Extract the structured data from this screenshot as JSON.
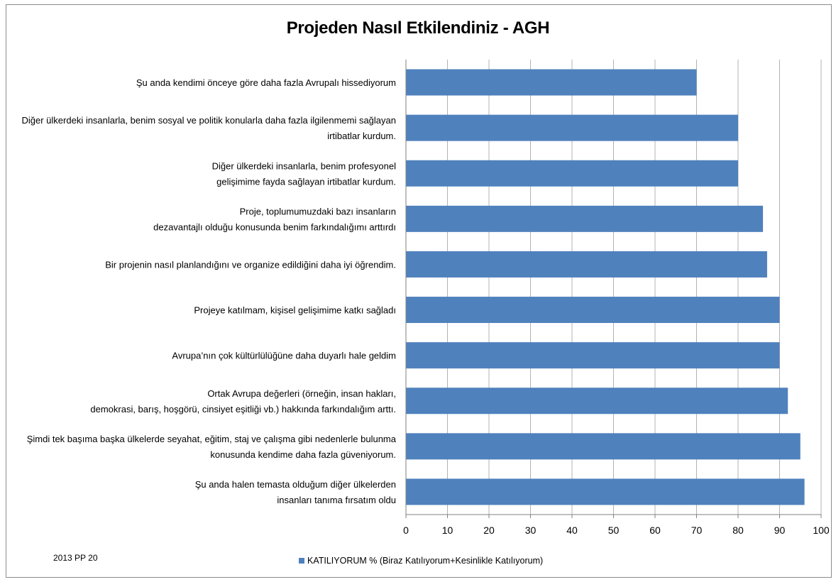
{
  "chart_data": {
    "type": "bar",
    "orientation": "horizontal",
    "title": "Projeden Nasıl Etkilendiniz - AGH",
    "categories": [
      [
        "Şu anda kendimi önceye göre daha fazla Avrupalı hissediyorum"
      ],
      [
        "Diğer ülkerdeki insanlarla, benim sosyal ve politik konularla daha fazla ilgilenmemi sağlayan",
        "irtibatlar kurdum."
      ],
      [
        "Diğer ülkerdeki insanlarla, benim profesyonel",
        "gelişimime fayda sağlayan irtibatlar kurdum."
      ],
      [
        "Proje, toplumumuzdaki bazı insanların",
        "dezavantajlı olduğu konusunda benim farkındalığımı arttırdı"
      ],
      [
        "Bir projenin nasıl planlandığını ve organize edildiğini daha iyi öğrendim."
      ],
      [
        "Projeye katılmam, kişisel gelişimime katkı sağladı"
      ],
      [
        "Avrupa’nın çok kültürlülüğüne daha duyarlı hale geldim"
      ],
      [
        "Ortak Avrupa değerleri (örneğin, insan hakları,",
        "demokrasi, barış, hoşgörü, cinsiyet eşitliği vb.) hakkında farkındalığım arttı."
      ],
      [
        "Şimdi tek başıma başka ülkelerde seyahat, eğitim, staj ve çalışma gibi nedenlerle bulunma",
        "konusunda kendime daha fazla güveniyorum."
      ],
      [
        "Şu anda halen temasta olduğum diğer ülkelerden",
        "insanları tanıma fırsatım oldu"
      ]
    ],
    "series": [
      {
        "name": "KATILIYORUM % (Biraz Katılıyorum+Kesinlikle Katılıyorum)",
        "values": [
          70,
          80,
          80,
          86,
          87,
          90,
          90,
          92,
          95,
          96
        ]
      }
    ],
    "xlim": [
      0,
      100
    ],
    "xticks": [
      "0",
      "10",
      "20",
      "30",
      "40",
      "50",
      "60",
      "70",
      "80",
      "90",
      "100"
    ],
    "grid": "vertical",
    "legend_position": "bottom",
    "bar_color": "#4f81bd"
  },
  "footnote": "2013 PP 20"
}
